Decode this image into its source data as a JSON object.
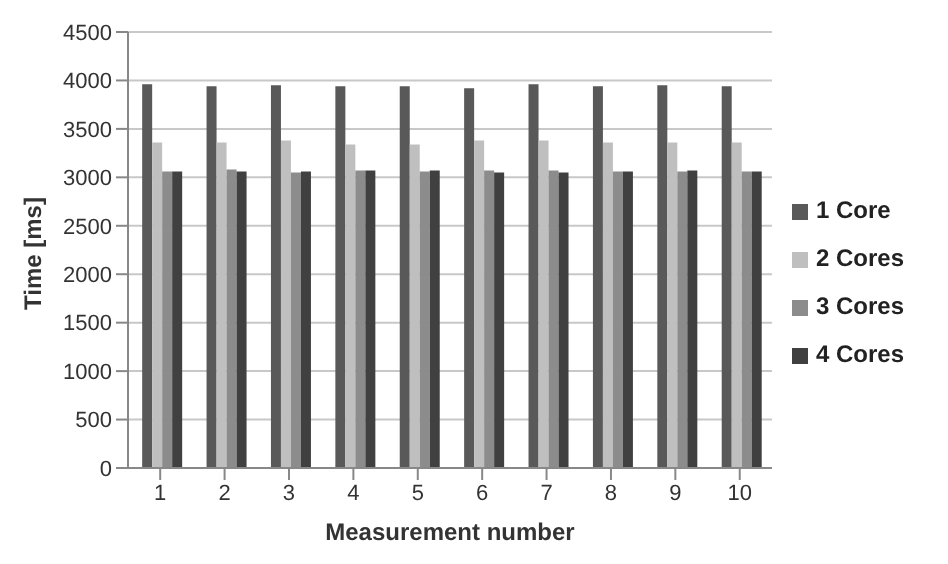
{
  "chart_data": {
    "type": "bar",
    "xlabel": "Measurement number",
    "ylabel": "Time [ms]",
    "categories": [
      "1",
      "2",
      "3",
      "4",
      "5",
      "6",
      "7",
      "8",
      "9",
      "10"
    ],
    "series": [
      {
        "name": "1 Core",
        "color": "#595959",
        "values": [
          3960,
          3940,
          3950,
          3940,
          3940,
          3920,
          3960,
          3940,
          3950,
          3940
        ]
      },
      {
        "name": "2 Cores",
        "color": "#bfbfbf",
        "values": [
          3360,
          3360,
          3380,
          3340,
          3340,
          3380,
          3380,
          3360,
          3360,
          3360
        ]
      },
      {
        "name": "3 Cores",
        "color": "#8c8c8c",
        "values": [
          3060,
          3080,
          3050,
          3070,
          3060,
          3070,
          3070,
          3060,
          3060,
          3060
        ]
      },
      {
        "name": "4 Cores",
        "color": "#404040",
        "values": [
          3060,
          3060,
          3060,
          3070,
          3070,
          3050,
          3050,
          3060,
          3070,
          3060
        ]
      }
    ],
    "ylim": [
      0,
      4500
    ],
    "yticks": [
      0,
      500,
      1000,
      1500,
      2000,
      2500,
      3000,
      3500,
      4000,
      4500
    ],
    "grid": "y",
    "legend": "right"
  }
}
